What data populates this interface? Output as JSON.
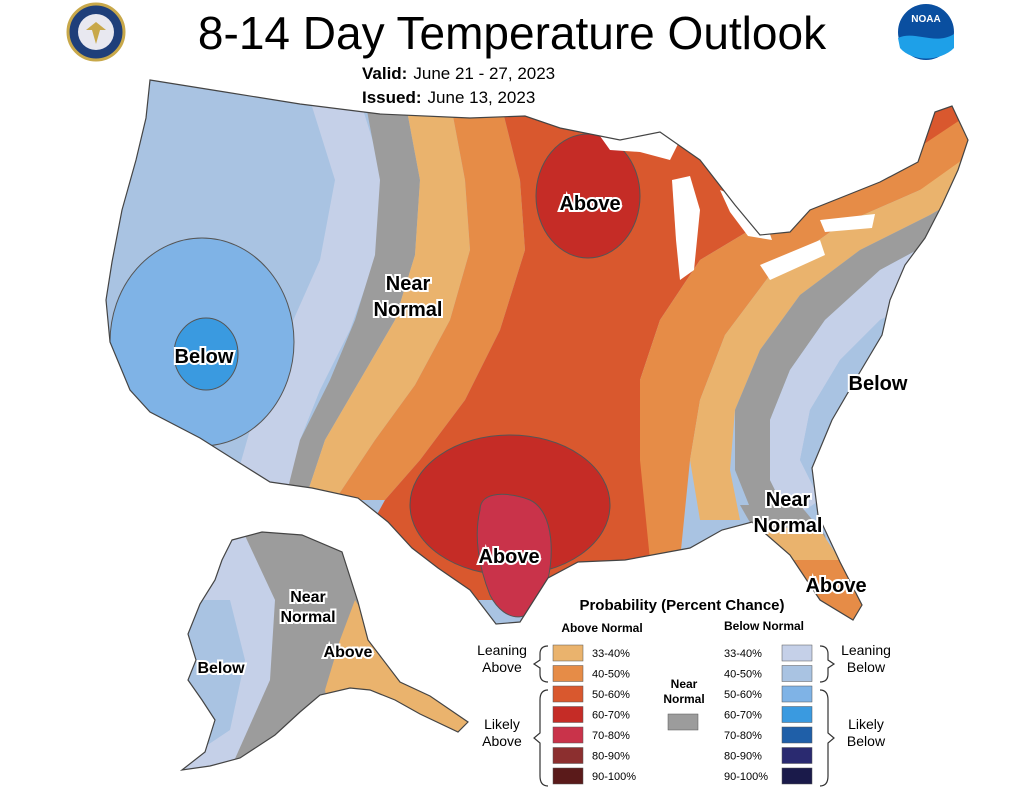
{
  "title": "8-14 Day Temperature Outlook",
  "valid_label": "Valid:",
  "valid_value": "June 21 - 27, 2023",
  "issued_label": "Issued:",
  "issued_value": "June 13, 2023",
  "logos": {
    "left": "doc-seal",
    "right": "noaa-logo",
    "noaa_text": "NOAA"
  },
  "regions": {
    "west_below": "Below",
    "plains_near": [
      "Near",
      "Normal"
    ],
    "midwest_above": "Above",
    "texas_above": "Above",
    "east_below": "Below",
    "se_near": [
      "Near",
      "Normal"
    ],
    "florida_above": "Above",
    "ak_near": [
      "Near",
      "Normal"
    ],
    "ak_below": "Below",
    "ak_above": "Above"
  },
  "legend": {
    "title": "Probability (Percent Chance)",
    "above_header": "Above Normal",
    "below_header": "Below Normal",
    "near_header": [
      "Near",
      "Normal"
    ],
    "leaning_above": [
      "Leaning",
      "Above"
    ],
    "likely_above": [
      "Likely",
      "Above"
    ],
    "leaning_below": [
      "Leaning",
      "Below"
    ],
    "likely_below": [
      "Likely",
      "Below"
    ],
    "ranges": [
      "33-40%",
      "40-50%",
      "50-60%",
      "60-70%",
      "70-80%",
      "80-90%",
      "90-100%"
    ],
    "above_colors": [
      "#eab36d",
      "#e68c47",
      "#d9582e",
      "#c52c26",
      "#c9334a",
      "#8c2f2f",
      "#5a1a1a"
    ],
    "below_colors": [
      "#c5d0e8",
      "#a9c3e2",
      "#7fb3e6",
      "#3a9ae0",
      "#1f5fa8",
      "#2a2a70",
      "#1a1a4a"
    ],
    "near_color": "#9c9c9c"
  }
}
